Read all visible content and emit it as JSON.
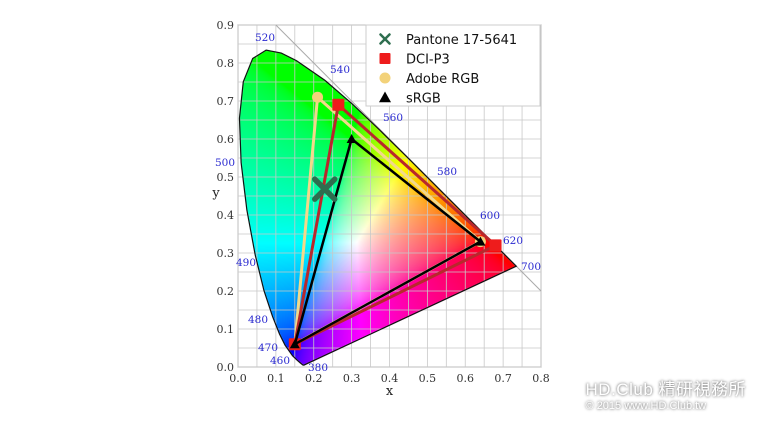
{
  "chart_data": {
    "type": "scatter",
    "title": "",
    "xlabel": "x",
    "ylabel": "y",
    "xlim": [
      0.0,
      0.8
    ],
    "ylim": [
      0.0,
      0.9
    ],
    "xticks": [
      "0.0",
      "0.1",
      "0.2",
      "0.3",
      "0.4",
      "0.5",
      "0.6",
      "0.7",
      "0.8"
    ],
    "yticks": [
      "0.0",
      "0.1",
      "0.2",
      "0.3",
      "0.4",
      "0.5",
      "0.6",
      "0.7",
      "0.8",
      "0.9"
    ],
    "grid": true,
    "legend_placement": "top-right",
    "spectral_locus": [
      [
        380,
        0.1741,
        0.005
      ],
      [
        420,
        0.1714,
        0.0051
      ],
      [
        440,
        0.1644,
        0.0109
      ],
      [
        450,
        0.1566,
        0.0177
      ],
      [
        460,
        0.144,
        0.0297
      ],
      [
        470,
        0.1241,
        0.0578
      ],
      [
        475,
        0.1096,
        0.0868
      ],
      [
        480,
        0.0913,
        0.1327
      ],
      [
        485,
        0.0687,
        0.2007
      ],
      [
        490,
        0.0454,
        0.295
      ],
      [
        495,
        0.0235,
        0.4127
      ],
      [
        500,
        0.0082,
        0.5384
      ],
      [
        505,
        0.0039,
        0.6548
      ],
      [
        510,
        0.0139,
        0.7502
      ],
      [
        515,
        0.0389,
        0.812
      ],
      [
        520,
        0.0743,
        0.8338
      ],
      [
        525,
        0.1142,
        0.8262
      ],
      [
        530,
        0.1547,
        0.8059
      ],
      [
        540,
        0.2296,
        0.7543
      ],
      [
        550,
        0.3016,
        0.6923
      ],
      [
        560,
        0.3731,
        0.6245
      ],
      [
        570,
        0.4441,
        0.5547
      ],
      [
        580,
        0.5125,
        0.4866
      ],
      [
        590,
        0.5752,
        0.4242
      ],
      [
        600,
        0.627,
        0.3725
      ],
      [
        610,
        0.6658,
        0.334
      ],
      [
        620,
        0.6915,
        0.3083
      ],
      [
        640,
        0.719,
        0.2809
      ],
      [
        700,
        0.7347,
        0.2653
      ]
    ],
    "wavelength_labels": [
      "380",
      "460",
      "470",
      "480",
      "490",
      "500",
      "520",
      "540",
      "560",
      "580",
      "600",
      "620",
      "700"
    ],
    "series": [
      {
        "name": "Pantone 17-5641",
        "marker": "x",
        "color": "#2e6e4f",
        "points": [
          [
            0.229,
            0.468
          ]
        ]
      },
      {
        "name": "DCI-P3",
        "marker": "square",
        "color": "#ee1c1c",
        "line_color": "#b8282c",
        "points": [
          [
            0.68,
            0.32
          ],
          [
            0.265,
            0.69
          ],
          [
            0.15,
            0.06
          ]
        ]
      },
      {
        "name": "Adobe RGB",
        "marker": "circle",
        "color": "#f3d27a",
        "line_color": "#f3d98a",
        "points": [
          [
            0.64,
            0.33
          ],
          [
            0.21,
            0.71
          ],
          [
            0.15,
            0.06
          ]
        ]
      },
      {
        "name": "sRGB",
        "marker": "triangle",
        "color": "#000000",
        "line_color": "#000000",
        "points": [
          [
            0.64,
            0.33
          ],
          [
            0.3,
            0.6
          ],
          [
            0.15,
            0.06
          ]
        ]
      }
    ]
  },
  "watermark": {
    "line1": "HD.Club 精研視務所",
    "line2": "© 2015  www.HD.Club.tw"
  }
}
